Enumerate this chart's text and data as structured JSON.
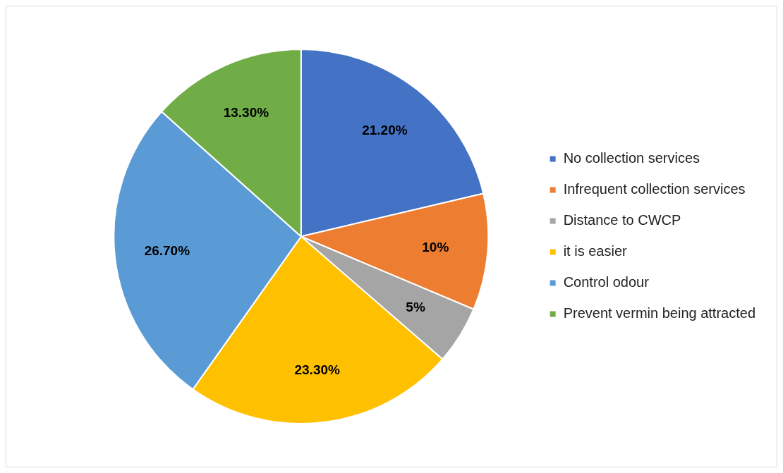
{
  "chart_data": {
    "type": "pie",
    "categories": [
      "No collection services",
      "Infrequent collection services",
      "Distance to CWCP",
      "it is easier",
      "Control odour",
      "Prevent vermin being attracted"
    ],
    "values": [
      21.2,
      10,
      5,
      23.3,
      26.7,
      13.3
    ],
    "value_labels": [
      "21.20%",
      "10%",
      "5%",
      "23.30%",
      "26.70%",
      "13.30%"
    ],
    "colors": [
      "#4472c4",
      "#ed7d31",
      "#a5a5a5",
      "#ffc000",
      "#5b9bd5",
      "#70ad47"
    ],
    "legend": "right"
  }
}
